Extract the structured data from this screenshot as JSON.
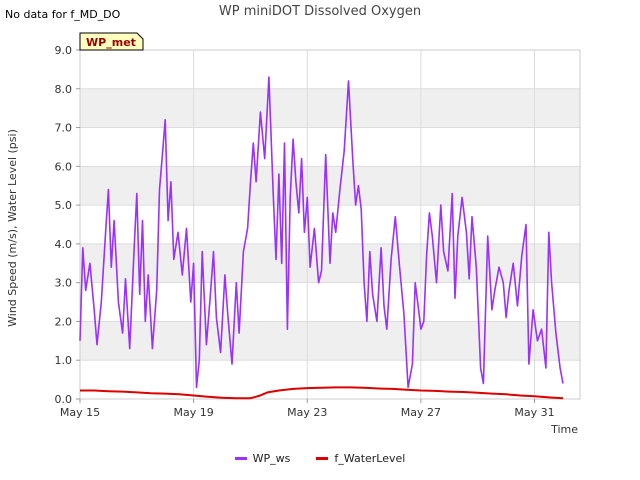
{
  "header": {
    "no_data_text": "No data for f_MD_DO",
    "title": "WP miniDOT Dissolved Oxygen"
  },
  "badge": {
    "label": "WP_met"
  },
  "colors": {
    "wp_ws": "#9b30ff",
    "f_waterlevel": "#dd0000",
    "band": "#efefef",
    "grid": "#dddddd",
    "badge_bg": "#ffffc0",
    "badge_text": "#990000"
  },
  "chart_data": {
    "type": "line",
    "title": "WP miniDOT Dissolved Oxygen",
    "xlabel": "Time",
    "ylabel": "Wind Speed (m/s), Water Level (psi)",
    "ylim": [
      0,
      9
    ],
    "xlim": [
      15,
      32.6
    ],
    "y_ticks": [
      "0.0",
      "1.0",
      "2.0",
      "3.0",
      "4.0",
      "5.0",
      "6.0",
      "7.0",
      "8.0",
      "9.0"
    ],
    "x_ticks": [
      {
        "label": "May 15",
        "value": 15
      },
      {
        "label": "May 19",
        "value": 19
      },
      {
        "label": "May 23",
        "value": 23
      },
      {
        "label": "May 27",
        "value": 27
      },
      {
        "label": "May 31",
        "value": 31
      }
    ],
    "grid": true,
    "legend_position": "bottom",
    "series": [
      {
        "name": "WP_ws",
        "x": [
          15.0,
          15.1,
          15.2,
          15.35,
          15.5,
          15.6,
          15.75,
          15.9,
          16.0,
          16.1,
          16.2,
          16.35,
          16.5,
          16.6,
          16.75,
          16.9,
          17.0,
          17.1,
          17.2,
          17.3,
          17.4,
          17.55,
          17.7,
          17.8,
          17.9,
          18.0,
          18.1,
          18.2,
          18.3,
          18.45,
          18.6,
          18.75,
          18.9,
          19.0,
          19.1,
          19.2,
          19.3,
          19.45,
          19.6,
          19.7,
          19.8,
          19.95,
          20.1,
          20.2,
          20.35,
          20.5,
          20.6,
          20.75,
          20.9,
          21.0,
          21.1,
          21.2,
          21.35,
          21.5,
          21.65,
          21.8,
          21.9,
          22.0,
          22.1,
          22.2,
          22.3,
          22.4,
          22.5,
          22.6,
          22.7,
          22.8,
          22.9,
          23.0,
          23.1,
          23.25,
          23.4,
          23.5,
          23.65,
          23.8,
          23.9,
          24.0,
          24.15,
          24.3,
          24.45,
          24.6,
          24.7,
          24.8,
          24.9,
          25.0,
          25.1,
          25.2,
          25.3,
          25.45,
          25.6,
          25.7,
          25.8,
          25.95,
          26.1,
          26.25,
          26.4,
          26.55,
          26.7,
          26.8,
          26.9,
          27.0,
          27.1,
          27.2,
          27.3,
          27.4,
          27.55,
          27.7,
          27.8,
          27.95,
          28.1,
          28.2,
          28.3,
          28.45,
          28.6,
          28.7,
          28.8,
          28.95,
          29.1,
          29.2,
          29.35,
          29.5,
          29.6,
          29.75,
          29.9,
          30.0,
          30.1,
          30.25,
          30.4,
          30.55,
          30.7,
          30.8,
          30.95,
          31.1,
          31.25,
          31.4,
          31.5,
          31.6,
          31.75,
          31.9,
          32.0
        ],
        "values": [
          1.5,
          3.9,
          2.8,
          3.5,
          2.3,
          1.4,
          2.5,
          4.3,
          5.4,
          3.4,
          4.6,
          2.5,
          1.7,
          3.1,
          1.3,
          3.8,
          5.3,
          2.7,
          4.6,
          2.0,
          3.2,
          1.3,
          2.8,
          5.4,
          6.3,
          7.2,
          4.6,
          5.6,
          3.6,
          4.3,
          3.2,
          4.4,
          2.5,
          3.5,
          0.3,
          1.0,
          3.8,
          1.4,
          2.8,
          3.8,
          2.1,
          1.2,
          3.2,
          2.2,
          0.9,
          3.0,
          1.7,
          3.8,
          4.4,
          5.6,
          6.6,
          5.6,
          7.4,
          6.2,
          8.3,
          5.3,
          3.6,
          5.8,
          3.5,
          6.6,
          1.8,
          5.2,
          6.7,
          5.6,
          4.8,
          6.2,
          4.3,
          5.2,
          3.4,
          4.4,
          3.0,
          3.3,
          6.3,
          3.5,
          4.8,
          4.3,
          5.4,
          6.4,
          8.2,
          6.2,
          5.0,
          5.5,
          4.9,
          3.0,
          2.0,
          3.8,
          2.7,
          2.0,
          3.9,
          2.4,
          1.8,
          3.6,
          4.7,
          3.4,
          2.2,
          0.3,
          0.9,
          3.0,
          2.4,
          1.8,
          2.0,
          3.7,
          4.8,
          4.2,
          3.0,
          5.0,
          3.8,
          3.3,
          5.3,
          2.6,
          4.2,
          5.2,
          4.3,
          3.1,
          4.7,
          3.4,
          0.8,
          0.4,
          4.2,
          2.3,
          2.8,
          3.4,
          3.0,
          2.1,
          2.8,
          3.5,
          2.4,
          3.7,
          4.5,
          0.9,
          2.3,
          1.5,
          1.8,
          0.8,
          4.3,
          3.0,
          1.7,
          0.8,
          0.4
        ]
      },
      {
        "name": "f_WaterLevel",
        "x": [
          15.0,
          15.5,
          16.0,
          16.5,
          17.0,
          17.5,
          18.0,
          18.5,
          19.0,
          19.5,
          20.0,
          20.5,
          21.0,
          21.3,
          21.6,
          22.0,
          22.5,
          23.0,
          23.5,
          24.0,
          24.5,
          25.0,
          25.5,
          26.0,
          26.5,
          27.0,
          27.5,
          28.0,
          28.5,
          29.0,
          29.5,
          30.0,
          30.5,
          31.0,
          31.5,
          32.0
        ],
        "values": [
          0.22,
          0.22,
          0.2,
          0.19,
          0.17,
          0.15,
          0.14,
          0.12,
          0.09,
          0.06,
          0.03,
          0.02,
          0.02,
          0.08,
          0.17,
          0.22,
          0.26,
          0.28,
          0.29,
          0.3,
          0.3,
          0.29,
          0.27,
          0.26,
          0.24,
          0.22,
          0.21,
          0.19,
          0.18,
          0.16,
          0.14,
          0.12,
          0.09,
          0.07,
          0.04,
          0.02
        ]
      }
    ]
  }
}
